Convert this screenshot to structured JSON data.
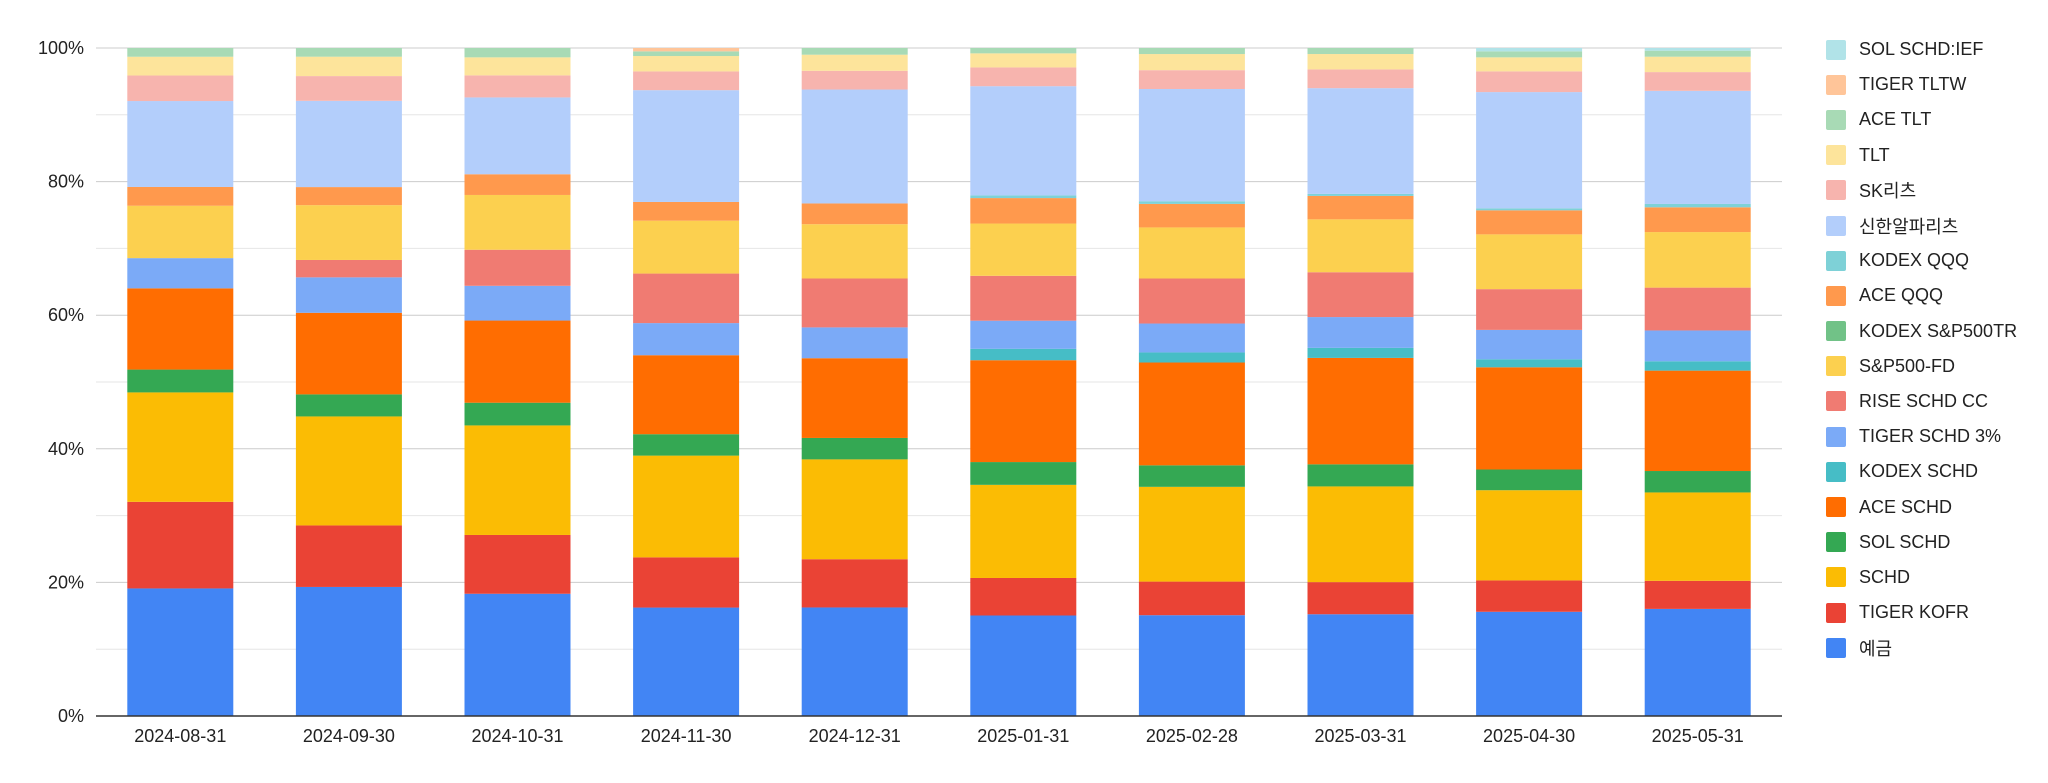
{
  "chart_data": {
    "type": "bar",
    "stacked": true,
    "normalized": true,
    "title": "",
    "xlabel": "",
    "ylabel": "",
    "ylim": [
      0,
      100
    ],
    "y_ticks": [
      "0%",
      "20%",
      "40%",
      "60%",
      "80%",
      "100%"
    ],
    "grid": true,
    "legend_position": "right",
    "categories": [
      "2024-08-31",
      "2024-09-30",
      "2024-10-31",
      "2024-11-30",
      "2024-12-31",
      "2025-01-31",
      "2025-02-28",
      "2025-03-31",
      "2025-04-30",
      "2025-05-31"
    ],
    "series": [
      {
        "name": "예금",
        "color": "#4285F4",
        "values": [
          19,
          19.3,
          18.3,
          16.2,
          16.2,
          15,
          15,
          15.2,
          15.6,
          16
        ]
      },
      {
        "name": "TIGER KOFR",
        "color": "#EA4335",
        "values": [
          12.9,
          9.2,
          8.8,
          7.5,
          7.2,
          5.6,
          5,
          4.8,
          4.7,
          4.2
        ]
      },
      {
        "name": "SCHD",
        "color": "#FBBC04",
        "values": [
          16.3,
          16.3,
          16.4,
          15.2,
          14.9,
          13.9,
          14.1,
          14.3,
          13.5,
          13.2
        ]
      },
      {
        "name": "SOL SCHD",
        "color": "#34A853",
        "values": [
          3.4,
          3.3,
          3.4,
          3.2,
          3.2,
          3.4,
          3.2,
          3.3,
          3.1,
          3.2
        ]
      },
      {
        "name": "ACE SCHD",
        "color": "#FF6D01",
        "values": [
          12.1,
          12.2,
          12.3,
          11.8,
          11.9,
          15.2,
          15.3,
          15.9,
          15.3,
          15
        ]
      },
      {
        "name": "KODEX SCHD",
        "color": "#46BDC6",
        "values": [
          0,
          0,
          0,
          0,
          0,
          1.7,
          1.5,
          1.5,
          1.2,
          1.4
        ]
      },
      {
        "name": "TIGER SCHD 3%",
        "color": "#7BAAF7",
        "values": [
          4.5,
          5.3,
          5.2,
          4.8,
          4.6,
          4.2,
          4.3,
          4.6,
          4.4,
          4.6
        ]
      },
      {
        "name": "RISE SCHD CC",
        "color": "#F07B72",
        "values": [
          0,
          2.6,
          5.4,
          7.4,
          7.3,
          6.7,
          6.7,
          6.7,
          6.1,
          6.4
        ]
      },
      {
        "name": "S&P500-FD",
        "color": "#FCD04F",
        "values": [
          7.8,
          8.2,
          8.2,
          7.9,
          8.1,
          7.8,
          7.6,
          7.9,
          8.2,
          8.3
        ]
      },
      {
        "name": "KODEX S&P500TR",
        "color": "#71C287",
        "values": [
          0,
          0,
          0,
          0,
          0,
          0,
          0,
          0,
          0,
          0
        ]
      },
      {
        "name": "ACE QQQ",
        "color": "#FF994D",
        "values": [
          2.8,
          2.7,
          3.1,
          2.8,
          3.1,
          3.8,
          3.5,
          3.5,
          3.6,
          3.7
        ]
      },
      {
        "name": "KODEX QQQ",
        "color": "#7ED1D7",
        "values": [
          0,
          0,
          0,
          0,
          0,
          0.4,
          0.4,
          0.3,
          0.3,
          0.5
        ]
      },
      {
        "name": "신한알파리츠",
        "color": "#B3CEFB",
        "values": [
          12.8,
          12.9,
          11.5,
          16.7,
          17,
          16.3,
          16.7,
          15.8,
          17.4,
          16.9
        ]
      },
      {
        "name": "SK리츠",
        "color": "#F7B4AE",
        "values": [
          3.8,
          3.7,
          3.3,
          2.8,
          2.8,
          2.8,
          2.8,
          2.8,
          3.1,
          2.8
        ]
      },
      {
        "name": "TLT",
        "color": "#FDE49B",
        "values": [
          2.8,
          2.9,
          2.7,
          2.3,
          2.4,
          2.1,
          2.4,
          2.3,
          2.1,
          2.3
        ]
      },
      {
        "name": "ACE TLT",
        "color": "#A8DAB5",
        "values": [
          1.3,
          1.3,
          1.4,
          0.7,
          1,
          0.8,
          0.9,
          0.9,
          0.9,
          0.9
        ]
      },
      {
        "name": "TIGER TLTW",
        "color": "#FFC599",
        "values": [
          0,
          0,
          0,
          0.5,
          0,
          0,
          0,
          0,
          0,
          0
        ]
      },
      {
        "name": "SOL SCHD:IEF",
        "color": "#B1E3E8",
        "values": [
          0,
          0,
          0,
          0,
          0,
          0,
          0,
          0,
          0.5,
          0.4
        ]
      }
    ],
    "legend_order": [
      "SOL SCHD:IEF",
      "TIGER TLTW",
      "ACE TLT",
      "TLT",
      "SK리츠",
      "신한알파리츠",
      "KODEX QQQ",
      "ACE QQQ",
      "KODEX S&P500TR",
      "S&P500-FD",
      "RISE SCHD CC",
      "TIGER SCHD 3%",
      "KODEX SCHD",
      "ACE SCHD",
      "SOL SCHD",
      "SCHD",
      "TIGER KOFR",
      "예금"
    ]
  }
}
